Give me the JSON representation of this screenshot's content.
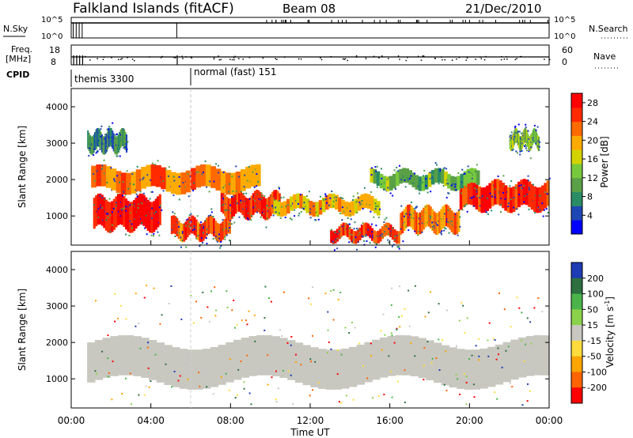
{
  "header": {
    "station": "Falkland Islands (fitACF)",
    "beam": "Beam 08",
    "date": "21/Dec/2010"
  },
  "strips": {
    "nsky": {
      "label": "N.Sky",
      "ticks": [
        "10^5",
        "10^0"
      ]
    },
    "nsearch": {
      "label": "N.Search",
      "ticks": [
        "10^5",
        "10^0"
      ]
    },
    "freq": {
      "label_line1": "Freq.",
      "label_line2": "[MHz]",
      "ticks": [
        "18",
        "8"
      ]
    },
    "nave": {
      "label": "Nave",
      "ticks": [
        "60",
        "0"
      ]
    },
    "cpid": {
      "label": "CPID",
      "modes": [
        {
          "name": "themis 3300",
          "start_hour": 0
        },
        {
          "name": "normal (fast) 151",
          "start_hour": 5.9
        }
      ]
    }
  },
  "chart_data": [
    {
      "type": "heatmap",
      "name": "power",
      "ylabel": "Slant Range [km]",
      "xlabel": "Time UT",
      "x_ticks": [
        "00:00",
        "04:00",
        "08:00",
        "12:00",
        "16:00",
        "20:00",
        "00:00"
      ],
      "x_range_hours": [
        0,
        24
      ],
      "y_ticks": [
        1000,
        2000,
        3000,
        4000
      ],
      "y_range": [
        200,
        4500
      ],
      "colorbar": {
        "label": "Power [dB]",
        "ticks": [
          "4",
          "8",
          "12",
          "16",
          "20",
          "24",
          "28"
        ],
        "range": [
          0,
          30
        ]
      },
      "bands": [
        {
          "range_start": 650,
          "range_end": 1500,
          "t_start": 1.1,
          "t_end": 4.5,
          "level": 28
        },
        {
          "range_start": 400,
          "range_end": 900,
          "t_start": 5.0,
          "t_end": 8.0,
          "level": 24
        },
        {
          "range_start": 1000,
          "range_end": 1600,
          "t_start": 7.5,
          "t_end": 10.5,
          "level": 26
        },
        {
          "range_start": 1100,
          "range_end": 1500,
          "t_start": 10.0,
          "t_end": 15.5,
          "level": 20
        },
        {
          "range_start": 350,
          "range_end": 700,
          "t_start": 13.0,
          "t_end": 16.5,
          "level": 26
        },
        {
          "range_start": 600,
          "range_end": 1200,
          "t_start": 16.5,
          "t_end": 19.5,
          "level": 22
        },
        {
          "range_start": 1200,
          "range_end": 1900,
          "t_start": 19.5,
          "t_end": 24.0,
          "level": 26
        },
        {
          "range_start": 1700,
          "range_end": 2300,
          "t_start": 1.0,
          "t_end": 9.5,
          "level": 22
        },
        {
          "range_start": 1800,
          "range_end": 2200,
          "t_start": 15.0,
          "t_end": 20.5,
          "level": 12
        },
        {
          "range_start": 2800,
          "range_end": 3300,
          "t_start": 0.8,
          "t_end": 2.8,
          "level": 8
        },
        {
          "range_start": 2900,
          "range_end": 3300,
          "t_start": 22.0,
          "t_end": 23.5,
          "level": 14
        }
      ]
    },
    {
      "type": "heatmap",
      "name": "velocity",
      "ylabel": "Slant Range [km]",
      "xlabel": "Time UT",
      "x_ticks": [
        "00:00",
        "04:00",
        "08:00",
        "12:00",
        "16:00",
        "20:00",
        "00:00"
      ],
      "x_range_hours": [
        0,
        24
      ],
      "y_ticks": [
        1000,
        2000,
        3000,
        4000
      ],
      "y_range": [
        200,
        4500
      ],
      "colorbar": {
        "label": "Velocity [m s",
        "label_sup": "-1",
        "label_end": "]",
        "ticks": [
          "200",
          "100",
          "50",
          "15",
          "-15",
          "-50",
          "-100",
          "-200"
        ]
      },
      "ground_scatter_band": {
        "range_start": 600,
        "range_end": 2300,
        "t_start": 0.8,
        "t_end": 24.0
      }
    }
  ],
  "colors": {
    "power_scale": [
      "#0000ff",
      "#1e46b4",
      "#2a8c64",
      "#5aa046",
      "#78c83c",
      "#d2d200",
      "#ffaa00",
      "#ff6a00",
      "#ff2a00",
      "#ff0000"
    ],
    "velocity_scale": [
      "#1e3cb4",
      "#2e7040",
      "#4ab44a",
      "#8ad24a",
      "#c8c8c0",
      "#ffdc3c",
      "#ffa500",
      "#ff6400",
      "#ff0000"
    ],
    "ground_scatter": "#c8c8c0"
  }
}
